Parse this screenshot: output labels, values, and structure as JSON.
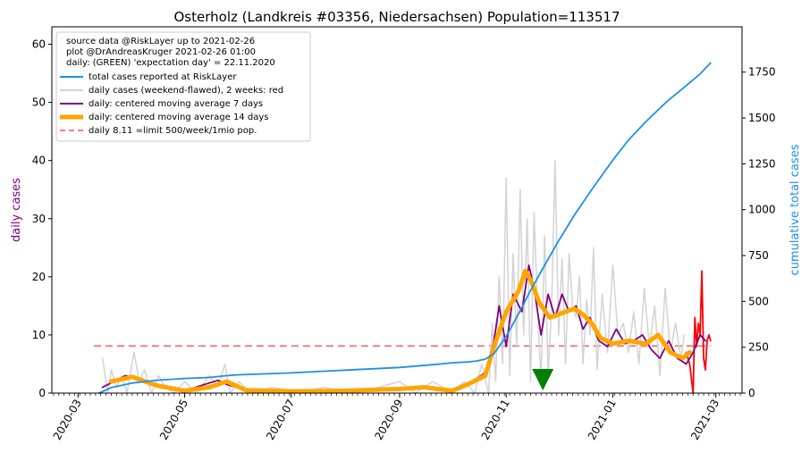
{
  "chart_data": {
    "type": "line",
    "title": "Osterholz (Landkreis #03356, Niedersachsen) Population=113517",
    "ylabel_left": "daily cases",
    "ylabel_right": "cumulative total cases",
    "colors": {
      "total": "#1f8fe8",
      "daily_raw": "#d3d3d3",
      "daily_raw_recent": "#ff0000",
      "ma7": "#800080",
      "ma14": "#ffa500",
      "limit": "#f08080",
      "marker": "#008000",
      "left_label": "#800080",
      "right_label": "#1f8fe8"
    },
    "legend": {
      "position": "top-left",
      "header": [
        "source data @RiskLayer up to 2021-02-26",
        "plot @DrAndreasKruger 2021-02-26 01:00",
        "daily: (GREEN) 'expectation day' = 22.11.2020"
      ],
      "entries": [
        {
          "key": "total",
          "label": "total cases reported at RiskLayer"
        },
        {
          "key": "daily_raw",
          "label": "daily cases (weekend-flawed), 2 weeks: red"
        },
        {
          "key": "ma7",
          "label": "daily: centered moving average 7 days"
        },
        {
          "key": "ma14",
          "label": "daily: centered moving average 14 days"
        },
        {
          "key": "limit",
          "label": "daily 8.11 =limit 500/week/1mio pop."
        }
      ]
    },
    "x_range": [
      "2020-02-15",
      "2021-03-16"
    ],
    "x_ticks": [
      "2020-03",
      "2020-05",
      "2020-07",
      "2020-09",
      "2020-11",
      "2021-01",
      "2021-03"
    ],
    "y_left": {
      "range": [
        0,
        63
      ],
      "ticks": [
        0,
        10,
        20,
        30,
        40,
        50,
        60
      ]
    },
    "y_right": {
      "range": [
        0,
        1997
      ],
      "ticks": [
        0,
        250,
        500,
        750,
        1000,
        1250,
        1500,
        1750
      ]
    },
    "limit_line": {
      "value": 8.11,
      "from": "2020-03-10",
      "to": "2021-02-26"
    },
    "expectation_day": "2020-11-22",
    "cumulative": {
      "dates": [
        "2020-03-13",
        "2020-03-20",
        "2020-04-01",
        "2020-04-15",
        "2020-05-01",
        "2020-05-15",
        "2020-05-25",
        "2020-06-01",
        "2020-07-01",
        "2020-08-01",
        "2020-09-01",
        "2020-09-20",
        "2020-10-01",
        "2020-10-10",
        "2020-10-15",
        "2020-10-20",
        "2020-10-25",
        "2020-11-01",
        "2020-11-08",
        "2020-11-15",
        "2020-11-22",
        "2020-12-01",
        "2020-12-10",
        "2020-12-20",
        "2021-01-01",
        "2021-01-10",
        "2021-01-20",
        "2021-02-01",
        "2021-02-10",
        "2021-02-20",
        "2021-02-26"
      ],
      "values": [
        0,
        30,
        55,
        70,
        80,
        85,
        95,
        100,
        110,
        125,
        140,
        155,
        165,
        170,
        175,
        185,
        215,
        310,
        430,
        560,
        680,
        830,
        970,
        1110,
        1270,
        1380,
        1480,
        1590,
        1660,
        1740,
        1800
      ]
    },
    "ma14": {
      "dates": [
        "2020-03-20",
        "2020-04-01",
        "2020-04-15",
        "2020-05-01",
        "2020-05-15",
        "2020-05-25",
        "2020-06-05",
        "2020-07-01",
        "2020-08-01",
        "2020-09-01",
        "2020-09-15",
        "2020-10-01",
        "2020-10-10",
        "2020-10-20",
        "2020-10-25",
        "2020-11-01",
        "2020-11-08",
        "2020-11-12",
        "2020-11-15",
        "2020-11-20",
        "2020-11-26",
        "2020-12-01",
        "2020-12-05",
        "2020-12-10",
        "2020-12-15",
        "2020-12-20",
        "2020-12-25",
        "2021-01-01",
        "2021-01-10",
        "2021-01-20",
        "2021-01-27",
        "2021-02-03",
        "2021-02-10",
        "2021-02-14"
      ],
      "values": [
        2.0,
        2.8,
        1.3,
        0.4,
        1.0,
        2.0,
        0.5,
        0.3,
        0.4,
        0.7,
        1.0,
        0.4,
        1.5,
        3.0,
        8.0,
        14.0,
        17.5,
        21.0,
        19.5,
        15.5,
        13.0,
        13.5,
        14.0,
        14.5,
        13.5,
        12.0,
        9.5,
        8.5,
        9.0,
        8.5,
        10.0,
        7.0,
        6.0,
        7.0
      ]
    },
    "ma7": {
      "dates": [
        "2020-03-15",
        "2020-03-28",
        "2020-04-05",
        "2020-04-15",
        "2020-05-01",
        "2020-05-20",
        "2020-05-25",
        "2020-06-05",
        "2020-07-01",
        "2020-08-01",
        "2020-09-01",
        "2020-09-15",
        "2020-10-01",
        "2020-10-10",
        "2020-10-20",
        "2020-10-25",
        "2020-10-28",
        "2020-11-01",
        "2020-11-05",
        "2020-11-10",
        "2020-11-14",
        "2020-11-17",
        "2020-11-21",
        "2020-11-25",
        "2020-11-29",
        "2020-12-03",
        "2020-12-07",
        "2020-12-11",
        "2020-12-15",
        "2020-12-19",
        "2020-12-24",
        "2020-12-29",
        "2021-01-03",
        "2021-01-08",
        "2021-01-13",
        "2021-01-18",
        "2021-01-23",
        "2021-01-28",
        "2021-02-02",
        "2021-02-07",
        "2021-02-12",
        "2021-02-16",
        "2021-02-20",
        "2021-02-23"
      ],
      "values": [
        1.0,
        3.0,
        2.5,
        1.2,
        0.4,
        2.2,
        1.5,
        0.5,
        0.3,
        0.5,
        0.8,
        1.2,
        0.5,
        1.5,
        3.5,
        9.0,
        15.0,
        8.0,
        17.0,
        14.0,
        22.0,
        18.0,
        10.0,
        17.0,
        13.0,
        17.0,
        14.0,
        15.0,
        11.0,
        13.0,
        9.0,
        8.0,
        11.0,
        8.5,
        9.0,
        10.0,
        7.5,
        6.0,
        9.0,
        6.0,
        5.0,
        7.0,
        10.0,
        9.0
      ]
    },
    "daily_raw": {
      "dates": [
        "2020-03-15",
        "2020-03-18",
        "2020-03-20",
        "2020-03-23",
        "2020-03-26",
        "2020-03-29",
        "2020-04-02",
        "2020-04-05",
        "2020-04-08",
        "2020-04-12",
        "2020-04-16",
        "2020-04-20",
        "2020-04-25",
        "2020-05-01",
        "2020-05-08",
        "2020-05-15",
        "2020-05-20",
        "2020-05-24",
        "2020-05-27",
        "2020-06-01",
        "2020-06-08",
        "2020-06-20",
        "2020-07-05",
        "2020-07-20",
        "2020-08-05",
        "2020-08-20",
        "2020-09-01",
        "2020-09-10",
        "2020-09-20",
        "2020-10-01",
        "2020-10-08",
        "2020-10-14",
        "2020-10-18",
        "2020-10-22",
        "2020-10-24",
        "2020-10-26",
        "2020-10-28",
        "2020-10-30",
        "2020-11-01",
        "2020-11-03",
        "2020-11-05",
        "2020-11-07",
        "2020-11-09",
        "2020-11-11",
        "2020-11-13",
        "2020-11-15",
        "2020-11-17",
        "2020-11-19",
        "2020-11-21",
        "2020-11-23",
        "2020-11-25",
        "2020-11-27",
        "2020-11-29",
        "2020-12-01",
        "2020-12-03",
        "2020-12-05",
        "2020-12-07",
        "2020-12-09",
        "2020-12-11",
        "2020-12-13",
        "2020-12-15",
        "2020-12-17",
        "2020-12-19",
        "2020-12-21",
        "2020-12-23",
        "2020-12-26",
        "2020-12-29",
        "2021-01-01",
        "2021-01-04",
        "2021-01-07",
        "2021-01-10",
        "2021-01-13",
        "2021-01-16",
        "2021-01-19",
        "2021-01-22",
        "2021-01-25",
        "2021-01-28",
        "2021-01-31",
        "2021-02-03",
        "2021-02-06",
        "2021-02-09",
        "2021-02-11"
      ],
      "values": [
        6,
        0,
        4,
        1,
        3,
        0,
        7,
        2,
        4,
        0,
        3,
        1,
        0,
        2,
        0,
        3,
        1,
        5,
        0,
        2,
        0,
        1,
        0,
        1,
        0,
        1,
        2,
        0,
        2,
        0,
        2,
        0,
        5,
        0,
        12,
        2,
        20,
        5,
        37,
        3,
        24,
        8,
        35,
        10,
        30,
        2,
        31,
        14,
        2,
        27,
        3,
        15,
        40,
        10,
        23,
        5,
        24,
        15,
        13,
        20,
        5,
        16,
        10,
        25,
        4,
        17,
        7,
        22,
        10,
        12,
        7,
        14,
        5,
        18,
        8,
        15,
        3,
        18,
        7,
        12,
        6,
        10
      ]
    },
    "daily_recent": {
      "dates": [
        "2021-02-12",
        "2021-02-14",
        "2021-02-16",
        "2021-02-17",
        "2021-02-18",
        "2021-02-19",
        "2021-02-20",
        "2021-02-21",
        "2021-02-22",
        "2021-02-23",
        "2021-02-24",
        "2021-02-25",
        "2021-02-26"
      ],
      "values": [
        7,
        5,
        0,
        13,
        8,
        12,
        10,
        21,
        6,
        4,
        9,
        10,
        9
      ]
    }
  }
}
